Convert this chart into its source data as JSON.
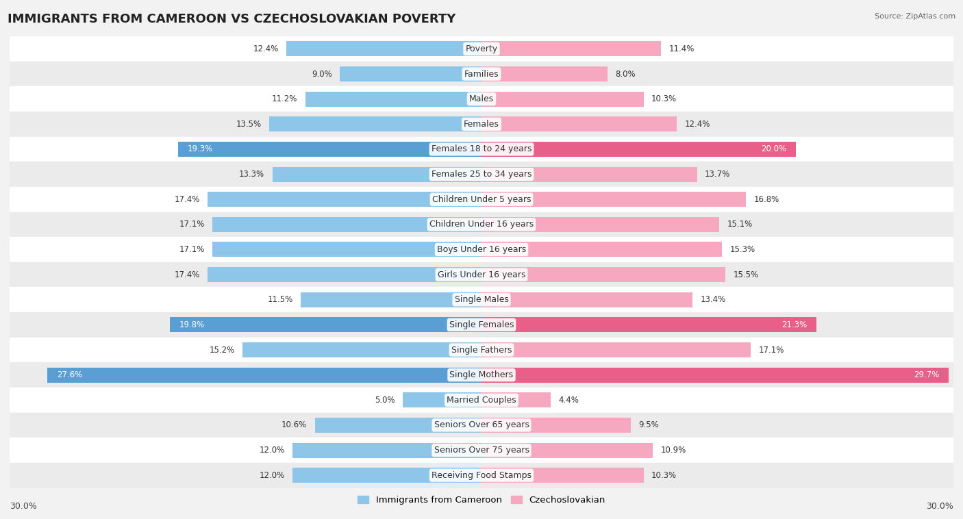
{
  "title": "IMMIGRANTS FROM CAMEROON VS CZECHOSLOVAKIAN POVERTY",
  "source": "Source: ZipAtlas.com",
  "categories": [
    "Poverty",
    "Families",
    "Males",
    "Females",
    "Females 18 to 24 years",
    "Females 25 to 34 years",
    "Children Under 5 years",
    "Children Under 16 years",
    "Boys Under 16 years",
    "Girls Under 16 years",
    "Single Males",
    "Single Females",
    "Single Fathers",
    "Single Mothers",
    "Married Couples",
    "Seniors Over 65 years",
    "Seniors Over 75 years",
    "Receiving Food Stamps"
  ],
  "cameroon_values": [
    12.4,
    9.0,
    11.2,
    13.5,
    19.3,
    13.3,
    17.4,
    17.1,
    17.1,
    17.4,
    11.5,
    19.8,
    15.2,
    27.6,
    5.0,
    10.6,
    12.0,
    12.0
  ],
  "czech_values": [
    11.4,
    8.0,
    10.3,
    12.4,
    20.0,
    13.7,
    16.8,
    15.1,
    15.3,
    15.5,
    13.4,
    21.3,
    17.1,
    29.7,
    4.4,
    9.5,
    10.9,
    10.3
  ],
  "cameroon_color": "#8dc6e8",
  "czech_color": "#f5a8c0",
  "cameroon_color_highlight": "#5a9fd4",
  "czech_color_highlight": "#e8608a",
  "bg_color": "#f2f2f2",
  "row_bg_light": "#ffffff",
  "row_bg_alt": "#ebebeb",
  "max_val": 30.0,
  "legend_cameroon": "Immigrants from Cameroon",
  "legend_czech": "Czechoslovakian",
  "bar_height": 0.6,
  "title_fontsize": 13,
  "label_fontsize": 9,
  "value_fontsize": 8.5,
  "highlight_threshold": 18.5
}
